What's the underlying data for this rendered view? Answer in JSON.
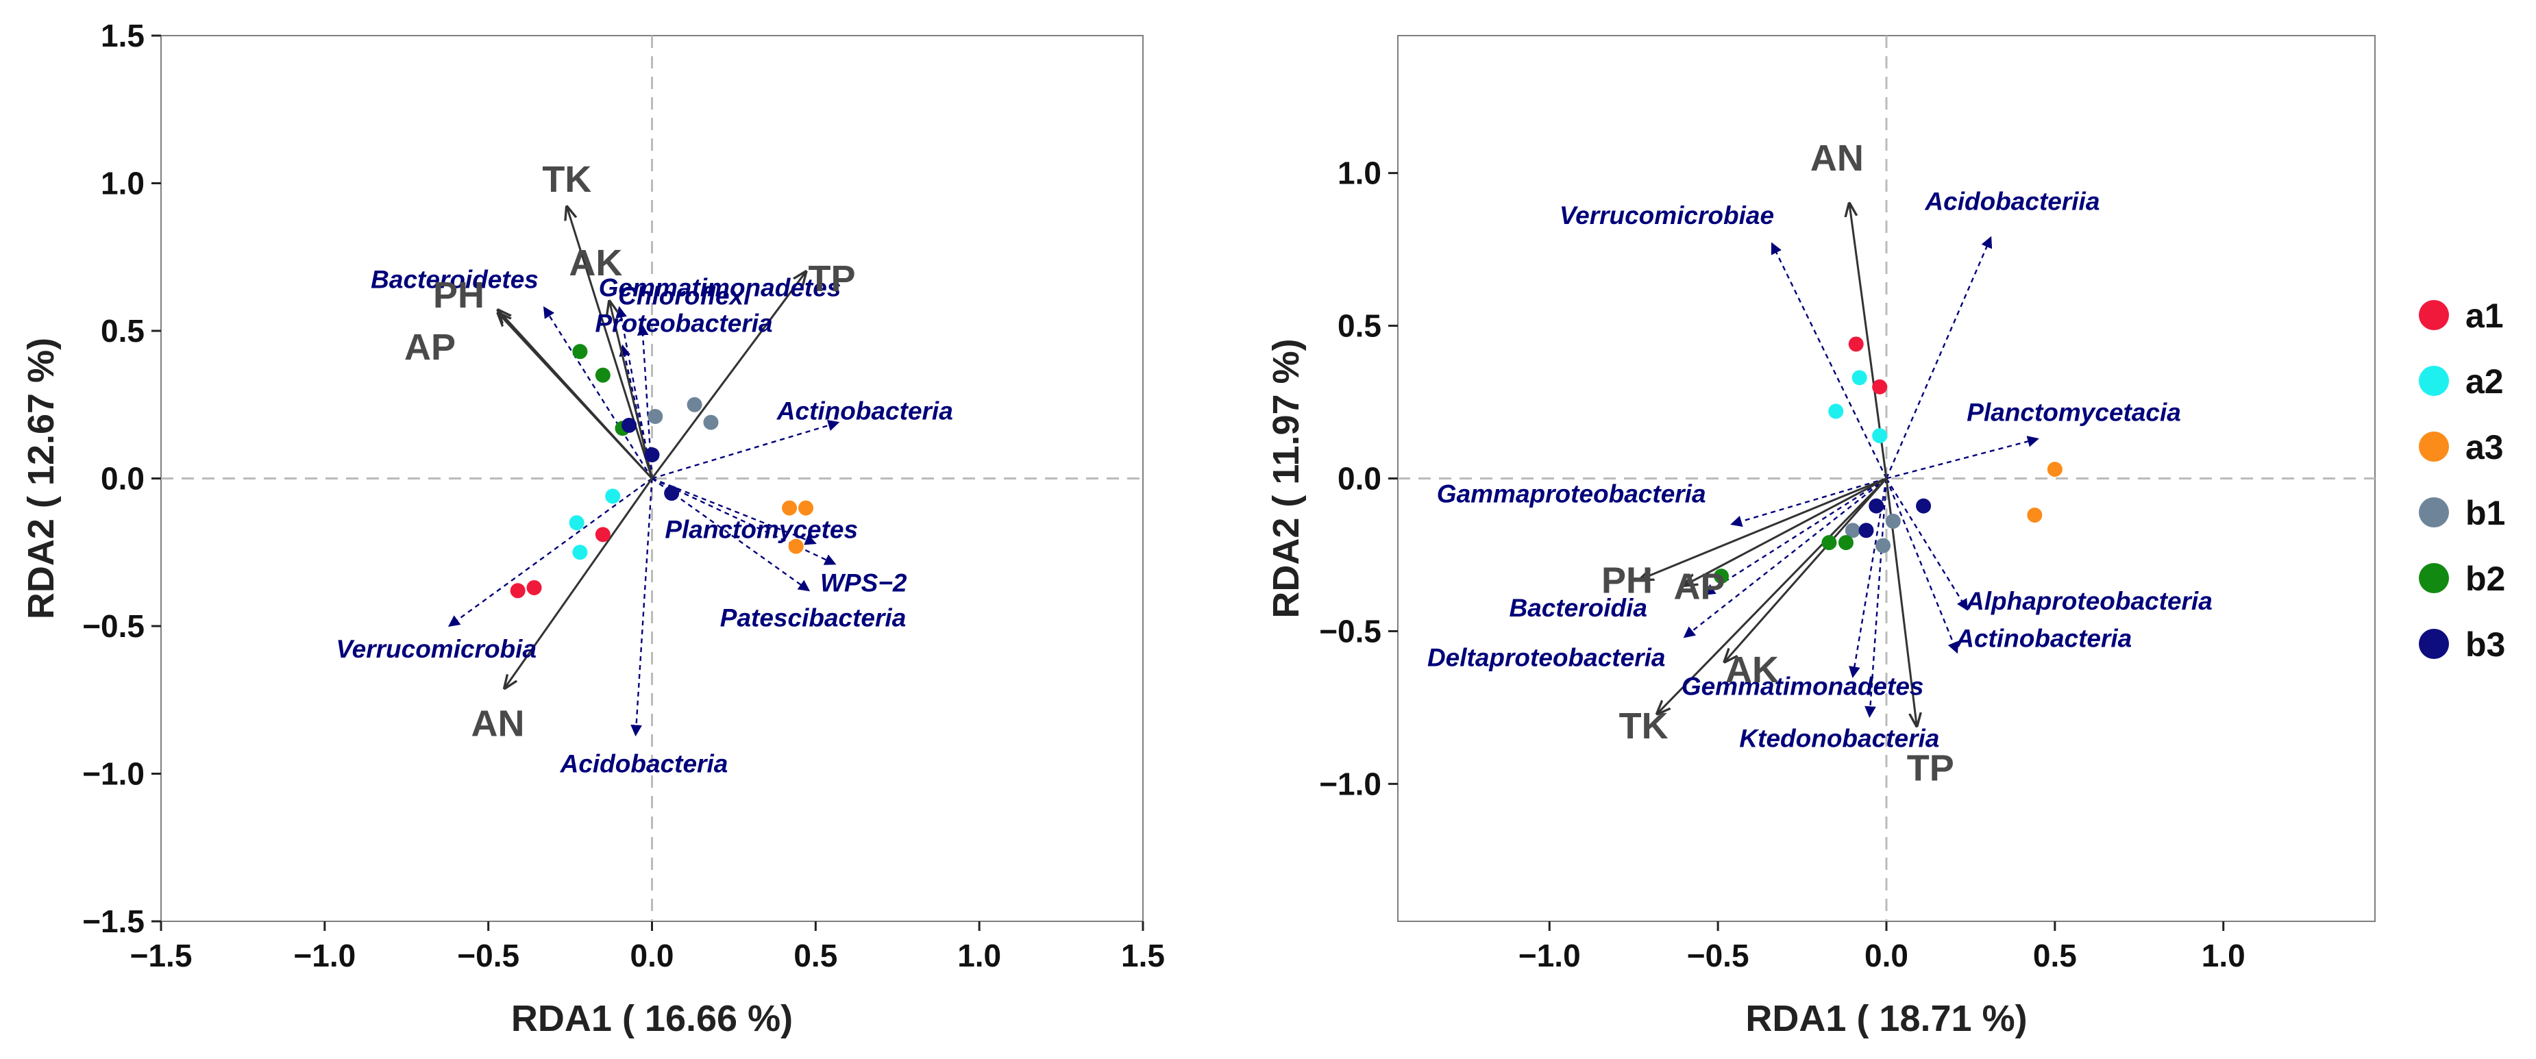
{
  "chart_data": [
    {
      "type": "scatter",
      "subtype": "rda-biplot",
      "xlabel": "RDA1 ( 16.66 %)",
      "ylabel": "RDA2 ( 12.67 %)",
      "xlim": [
        -1.5,
        1.5
      ],
      "ylim": [
        -1.5,
        1.5
      ],
      "xticks": [
        -1.5,
        -1.0,
        -0.5,
        0.0,
        0.5,
        1.0,
        1.5
      ],
      "yticks": [
        -1.5,
        -1.0,
        -0.5,
        0.0,
        0.5,
        1.0,
        1.5
      ],
      "xtick_labels": [
        "−1.5",
        "−1.0",
        "−0.5",
        "0.0",
        "0.5",
        "1.0",
        "1.5"
      ],
      "ytick_labels": [
        "−1.5",
        "−1.0",
        "−0.5",
        "0.0",
        "0.5",
        "1.0",
        "1.5"
      ],
      "env_arrows": [
        {
          "label": "TK",
          "x": -0.26,
          "y": 0.92
        },
        {
          "label": "AK",
          "x": -0.13,
          "y": 0.6
        },
        {
          "label": "PH",
          "x": -0.47,
          "y": 0.57
        },
        {
          "label": "AP",
          "x": -0.47,
          "y": 0.56
        },
        {
          "label": "TP",
          "x": 0.47,
          "y": 0.7
        },
        {
          "label": "AN",
          "x": -0.45,
          "y": -0.71
        }
      ],
      "species_arrows": [
        {
          "label": "Bacteroidetes",
          "x": -0.33,
          "y": 0.58
        },
        {
          "label": "Gemmatimonadetes",
          "x": -0.1,
          "y": 0.58
        },
        {
          "label": "Chloroflexi",
          "x": -0.03,
          "y": 0.52
        },
        {
          "label": "Proteobacteria",
          "x": -0.09,
          "y": 0.45
        },
        {
          "label": "Actinobacteria",
          "x": 0.57,
          "y": 0.19
        },
        {
          "label": "Planctomycetes",
          "x": 0.5,
          "y": -0.22
        },
        {
          "label": "WPS−2",
          "x": 0.56,
          "y": -0.29
        },
        {
          "label": "Patescibacteria",
          "x": 0.48,
          "y": -0.38
        },
        {
          "label": "Verrucomicrobia",
          "x": -0.62,
          "y": -0.5
        },
        {
          "label": "Acidobacteria",
          "x": -0.05,
          "y": -0.87
        }
      ],
      "points": [
        {
          "group": "a1",
          "x": -0.15,
          "y": -0.19
        },
        {
          "group": "a1",
          "x": -0.41,
          "y": -0.38
        },
        {
          "group": "a1",
          "x": -0.36,
          "y": -0.37
        },
        {
          "group": "a2",
          "x": -0.12,
          "y": -0.06
        },
        {
          "group": "a2",
          "x": -0.23,
          "y": -0.15
        },
        {
          "group": "a2",
          "x": -0.22,
          "y": -0.25
        },
        {
          "group": "a3",
          "x": 0.42,
          "y": -0.1
        },
        {
          "group": "a3",
          "x": 0.47,
          "y": -0.1
        },
        {
          "group": "a3",
          "x": 0.44,
          "y": -0.23
        },
        {
          "group": "b1",
          "x": 0.13,
          "y": 0.25
        },
        {
          "group": "b1",
          "x": 0.18,
          "y": 0.19
        },
        {
          "group": "b1",
          "x": 0.01,
          "y": 0.21
        },
        {
          "group": "b2",
          "x": -0.22,
          "y": 0.43
        },
        {
          "group": "b2",
          "x": -0.15,
          "y": 0.35
        },
        {
          "group": "b2",
          "x": -0.09,
          "y": 0.17
        },
        {
          "group": "b3",
          "x": 0.0,
          "y": 0.08
        },
        {
          "group": "b3",
          "x": -0.07,
          "y": 0.18
        },
        {
          "group": "b3",
          "x": 0.06,
          "y": -0.05
        }
      ]
    },
    {
      "type": "scatter",
      "subtype": "rda-biplot",
      "xlabel": "RDA1 ( 18.71 %)",
      "ylabel": "RDA2 ( 11.97 %)",
      "xlim": [
        -1.45,
        1.45
      ],
      "ylim": [
        -1.45,
        1.45
      ],
      "xticks": [
        -1.0,
        -0.5,
        0.0,
        0.5,
        1.0
      ],
      "yticks": [
        -1.0,
        -0.5,
        0.0,
        0.5,
        1.0
      ],
      "xtick_labels": [
        "−1.0",
        "−0.5",
        "0.0",
        "0.5",
        "1.0"
      ],
      "ytick_labels": [
        "−1.0",
        "−0.5",
        "0.0",
        "0.5",
        "1.0"
      ],
      "env_arrows": [
        {
          "label": "AN",
          "x": -0.11,
          "y": 0.9
        },
        {
          "label": "PH",
          "x": -0.73,
          "y": -0.33
        },
        {
          "label": "AP",
          "x": -0.6,
          "y": -0.35
        },
        {
          "label": "AK",
          "x": -0.48,
          "y": -0.6
        },
        {
          "label": "TK",
          "x": -0.68,
          "y": -0.77
        },
        {
          "label": "TP",
          "x": 0.09,
          "y": -0.81
        }
      ],
      "species_arrows": [
        {
          "label": "Verrucomicrobiae",
          "x": -0.34,
          "y": 0.77
        },
        {
          "label": "Acidobacteriia",
          "x": 0.31,
          "y": 0.79
        },
        {
          "label": "Planctomycetacia",
          "x": 0.45,
          "y": 0.13
        },
        {
          "label": "Gammaproteobacteria",
          "x": -0.46,
          "y": -0.15
        },
        {
          "label": "Bacteroidia",
          "x": -0.54,
          "y": -0.38
        },
        {
          "label": "Deltaproteobacteria",
          "x": -0.6,
          "y": -0.52
        },
        {
          "label": "Alphaproteobacteria",
          "x": 0.24,
          "y": -0.43
        },
        {
          "label": "Actinobacteria",
          "x": 0.21,
          "y": -0.57
        },
        {
          "label": "Gemmatimonadetes",
          "x": -0.1,
          "y": -0.65
        },
        {
          "label": "Ktedonobacteria",
          "x": -0.05,
          "y": -0.78
        }
      ],
      "points": [
        {
          "group": "a1",
          "x": -0.09,
          "y": 0.44
        },
        {
          "group": "a1",
          "x": -0.02,
          "y": 0.3
        },
        {
          "group": "a2",
          "x": -0.08,
          "y": 0.33
        },
        {
          "group": "a2",
          "x": -0.15,
          "y": 0.22
        },
        {
          "group": "a2",
          "x": -0.02,
          "y": 0.14
        },
        {
          "group": "a3",
          "x": 0.5,
          "y": 0.03
        },
        {
          "group": "a3",
          "x": 0.44,
          "y": -0.12
        },
        {
          "group": "b1",
          "x": -0.1,
          "y": -0.17
        },
        {
          "group": "b1",
          "x": 0.02,
          "y": -0.14
        },
        {
          "group": "b1",
          "x": -0.01,
          "y": -0.22
        },
        {
          "group": "b2",
          "x": -0.49,
          "y": -0.32
        },
        {
          "group": "b2",
          "x": -0.17,
          "y": -0.21
        },
        {
          "group": "b2",
          "x": -0.12,
          "y": -0.21
        },
        {
          "group": "b3",
          "x": -0.03,
          "y": -0.09
        },
        {
          "group": "b3",
          "x": 0.11,
          "y": -0.09
        },
        {
          "group": "b3",
          "x": -0.06,
          "y": -0.17
        }
      ]
    }
  ],
  "legend": {
    "placement": "right",
    "entries": [
      {
        "label": "a1",
        "color": "#f0193c"
      },
      {
        "label": "a2",
        "color": "#1ef0f0"
      },
      {
        "label": "a3",
        "color": "#fb8c1a"
      },
      {
        "label": "b1",
        "color": "#6e8599"
      },
      {
        "label": "b2",
        "color": "#128a12"
      },
      {
        "label": "b3",
        "color": "#0d0d80"
      }
    ]
  },
  "colors": {
    "env_arrow": "#333333",
    "species_arrow": "#00007a",
    "zero_line": "#bbbbbb"
  }
}
